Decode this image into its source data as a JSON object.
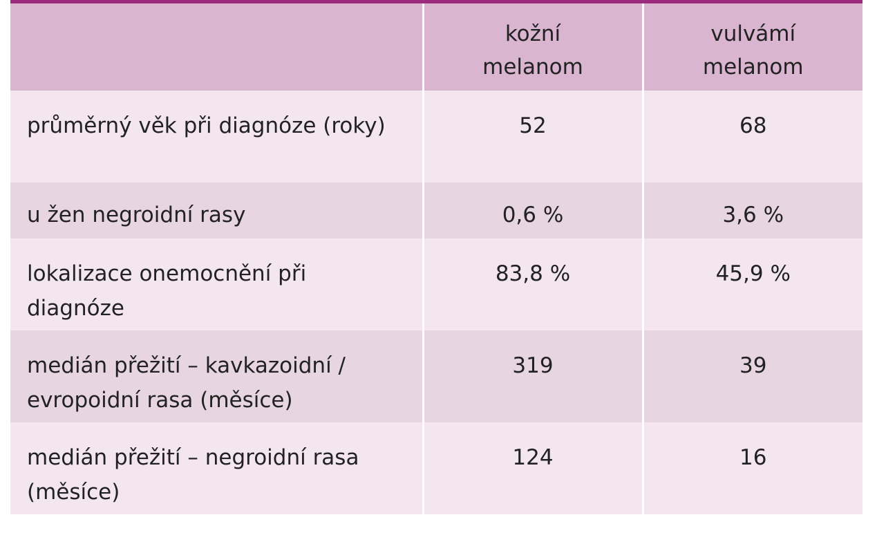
{
  "table": {
    "header": [
      "",
      "kožní melanom",
      "vulvámí melanom"
    ],
    "rows": [
      [
        "průměrný věk při diagnóze (roky)",
        "52",
        "68"
      ],
      [
        "u žen negroidní rasy",
        "0,6 %",
        "3,6 %"
      ],
      [
        "lokalizace onemocnění při diagnóze",
        "83,8 %",
        "45,9 %"
      ],
      [
        "medián přežití – kavkazoidní / evropoidní rasa (měsíce)",
        "319",
        "39"
      ],
      [
        "medián přežití – negroidní rasa (měsíce)",
        "124",
        "16"
      ]
    ]
  }
}
